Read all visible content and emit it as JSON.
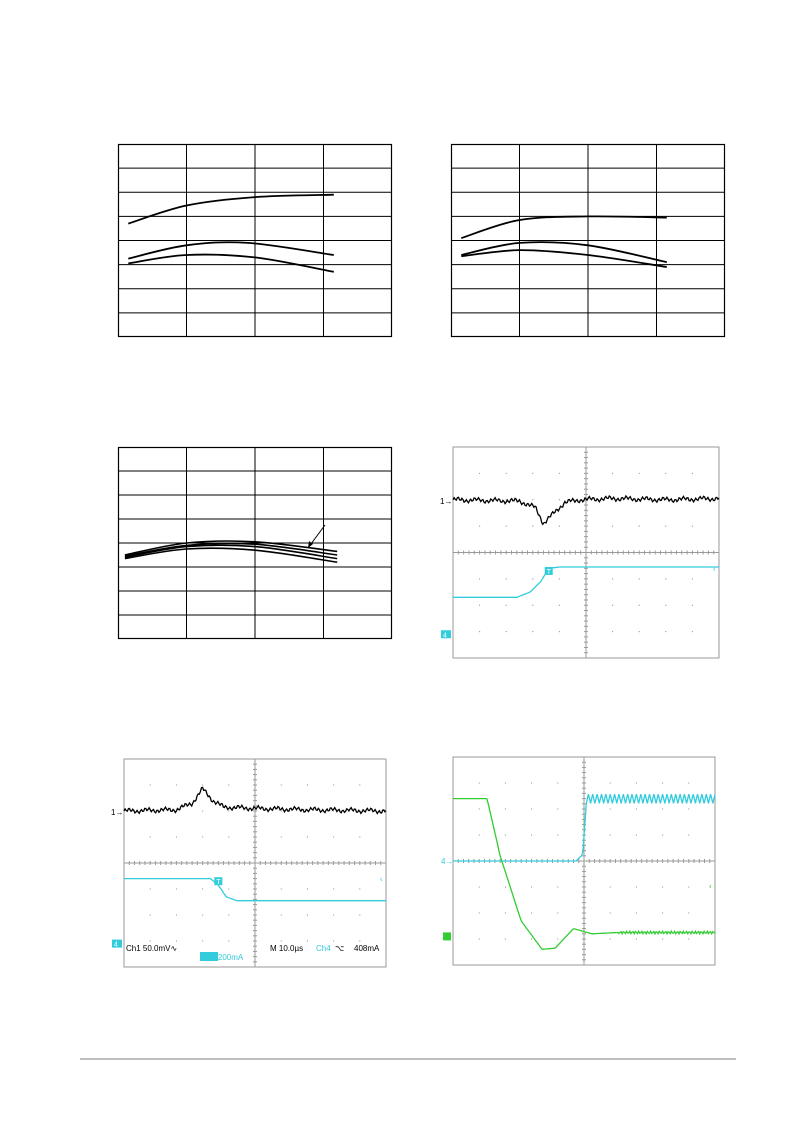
{
  "colors": {
    "ink": "#000000",
    "grid": "#000000",
    "scope_bg": "#ffffff",
    "scope_grid": "#9a9a9a",
    "ch1": "#000000",
    "ch4": "#33ccdd",
    "ch_green": "#33cc33"
  },
  "chart_data": [
    {
      "type": "line",
      "title": "",
      "xlabel": "",
      "ylabel": "",
      "xlim": [
        0,
        4
      ],
      "ylim": [
        0,
        8
      ],
      "grid": true,
      "series": [
        {
          "x": [
            0.15,
            1,
            2,
            3.15
          ],
          "y": [
            4.7,
            5.45,
            5.8,
            5.9
          ]
        },
        {
          "x": [
            0.15,
            1,
            1.9,
            3.15
          ],
          "y": [
            3.25,
            3.8,
            3.9,
            3.4
          ]
        },
        {
          "x": [
            0.15,
            1,
            2,
            3.15
          ],
          "y": [
            3.05,
            3.4,
            3.3,
            2.7
          ]
        }
      ]
    },
    {
      "type": "line",
      "title": "",
      "xlabel": "",
      "ylabel": "",
      "xlim": [
        0,
        4
      ],
      "ylim": [
        0,
        8
      ],
      "grid": true,
      "series": [
        {
          "x": [
            0.15,
            1,
            2,
            3.15
          ],
          "y": [
            4.1,
            4.85,
            5.0,
            4.95
          ]
        },
        {
          "x": [
            0.15,
            1,
            2,
            3.15
          ],
          "y": [
            3.4,
            3.9,
            3.8,
            3.1
          ]
        },
        {
          "x": [
            0.15,
            1,
            2,
            3.15
          ],
          "y": [
            3.35,
            3.6,
            3.4,
            2.9
          ]
        }
      ]
    },
    {
      "type": "line",
      "title": "",
      "xlabel": "",
      "ylabel": "",
      "xlim": [
        0,
        4
      ],
      "ylim": [
        0,
        8
      ],
      "grid": true,
      "series": [
        {
          "x": [
            0.1,
            1,
            2,
            3.2
          ],
          "y": [
            3.5,
            4.0,
            4.05,
            3.65
          ]
        },
        {
          "x": [
            0.1,
            1,
            2,
            3.2
          ],
          "y": [
            3.45,
            3.9,
            3.95,
            3.5
          ]
        },
        {
          "x": [
            0.1,
            1,
            2,
            3.2
          ],
          "y": [
            3.4,
            3.85,
            3.85,
            3.35
          ]
        },
        {
          "x": [
            0.1,
            1,
            2,
            3.2
          ],
          "y": [
            3.35,
            3.75,
            3.7,
            3.2
          ]
        }
      ]
    },
    {
      "type": "line",
      "title": "",
      "grid": true,
      "xlim": [
        0,
        10
      ],
      "ylim": [
        -4,
        4
      ],
      "markers": {
        "ch1_ref": "1",
        "ch4_ref": "4",
        "trigger": "T"
      },
      "series": [
        {
          "x": [
            0,
            2.5,
            3.1,
            3.4,
            3.6,
            4.2,
            4.8,
            6,
            8,
            10
          ],
          "y": [
            2.0,
            1.95,
            1.7,
            1.1,
            1.3,
            1.9,
            2.0,
            2.05,
            2.0,
            2.05
          ]
        },
        {
          "x": [
            0,
            2.4,
            2.9,
            3.3,
            3.6,
            4,
            10
          ],
          "y": [
            -1.7,
            -1.7,
            -1.5,
            -1.1,
            -0.6,
            -0.55,
            -0.55
          ]
        }
      ]
    },
    {
      "type": "line",
      "title": "",
      "grid": true,
      "xlim": [
        0,
        10
      ],
      "ylim": [
        -4,
        4
      ],
      "markers": {
        "ch1_ref": "1",
        "ch4_ref": "4",
        "trigger": "T"
      },
      "readout": {
        "ch1": "Ch1  50.0mV∿",
        "time": "M 10.0µs",
        "ch4_src": "Ch4",
        "trigger_mode": "⌥",
        "level": "408mA",
        "ch4_scale": "Ch4  200mA"
      },
      "series": [
        {
          "x": [
            0,
            2,
            2.6,
            3.0,
            3.4,
            3.8,
            5,
            7,
            10
          ],
          "y": [
            2.0,
            2.05,
            2.3,
            2.85,
            2.4,
            2.15,
            2.1,
            2.05,
            2.0
          ]
        },
        {
          "x": [
            0,
            3.3,
            3.6,
            3.9,
            4.3,
            10
          ],
          "y": [
            -0.6,
            -0.6,
            -0.85,
            -1.3,
            -1.45,
            -1.45
          ]
        }
      ]
    },
    {
      "type": "line",
      "title": "",
      "grid": true,
      "xlim": [
        0,
        10
      ],
      "ylim": [
        -4,
        4
      ],
      "markers": {
        "ch4_ref": "4",
        "green_ref": "G"
      },
      "series": [
        {
          "x": [
            0,
            4.7,
            4.95,
            5.1,
            10
          ],
          "y": [
            0.0,
            0.0,
            0.25,
            2.4,
            2.4
          ]
        },
        {
          "x": [
            0,
            1.3,
            1.8,
            2.6,
            3.4,
            3.9,
            4.6,
            5.3,
            6.3,
            10
          ],
          "y": [
            2.4,
            2.4,
            0.2,
            -2.3,
            -3.4,
            -3.35,
            -2.6,
            -2.8,
            -2.75,
            -2.75
          ]
        }
      ]
    }
  ]
}
